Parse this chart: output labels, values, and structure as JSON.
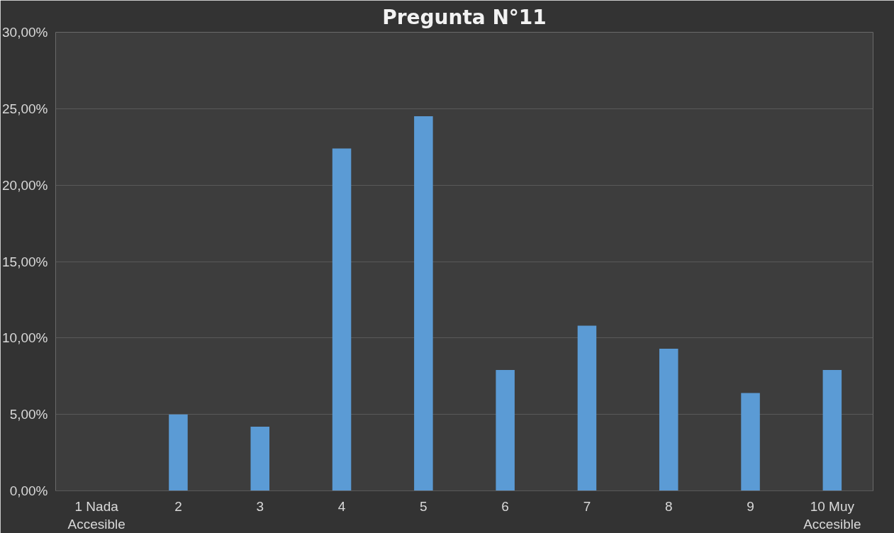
{
  "chart_data": {
    "type": "bar",
    "title": "Pregunta N°11",
    "categories": [
      "1 Nada\nAccesible",
      "2",
      "3",
      "4",
      "5",
      "6",
      "7",
      "8",
      "9",
      "10 Muy\nAccesible"
    ],
    "values": [
      0,
      5.0,
      4.2,
      22.4,
      24.5,
      7.9,
      10.8,
      9.3,
      6.4,
      7.9
    ],
    "color": "#5b9bd5",
    "ylim": [
      0,
      30
    ],
    "yticks": [
      {
        "value": 0,
        "label": "0,00%"
      },
      {
        "value": 5,
        "label": "5,00%"
      },
      {
        "value": 10,
        "label": "10,00%"
      },
      {
        "value": 15,
        "label": "15,00%"
      },
      {
        "value": 20,
        "label": "20,00%"
      },
      {
        "value": 25,
        "label": "25,00%"
      },
      {
        "value": 30,
        "label": "30,00%"
      }
    ],
    "grid": "y"
  }
}
